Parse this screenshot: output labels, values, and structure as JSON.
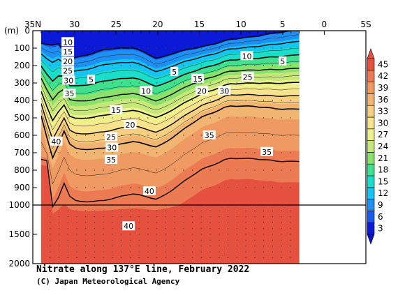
{
  "chart_data": {
    "type": "heatmap",
    "title": "Nitrate along 137°E line, February 2022",
    "credit": "(C) Japan Meteorological Agency",
    "ylabel": "(m)",
    "x_ticks": [
      "35N",
      "30",
      "25",
      "20",
      "15",
      "10",
      "5",
      "0",
      "5S"
    ],
    "x_tick_values": [
      35,
      30,
      25,
      20,
      15,
      10,
      5,
      0,
      -5
    ],
    "xlim": [
      35,
      -5
    ],
    "y_ticks_upper": [
      "0",
      "100",
      "200",
      "300",
      "400",
      "500",
      "600",
      "700",
      "800",
      "900",
      "1000"
    ],
    "y_ticks_lower": [
      "1500",
      "2000"
    ],
    "y_break": 1000,
    "ylim": [
      0,
      2000
    ],
    "data_extent_lat": [
      34,
      3
    ],
    "colorbar": {
      "levels": [
        3,
        6,
        9,
        12,
        15,
        18,
        21,
        24,
        27,
        30,
        33,
        36,
        39,
        42,
        45
      ],
      "labels": [
        "45",
        "42",
        "39",
        "36",
        "33",
        "30",
        "27",
        "24",
        "21",
        "18",
        "15",
        "12",
        "9",
        "6",
        "3"
      ],
      "colors": [
        "#0a1ad6",
        "#1a58f0",
        "#1e8ff5",
        "#16c4f2",
        "#19dfca",
        "#3fe08e",
        "#8be16b",
        "#c6e77a",
        "#eef08c",
        "#f7e38c",
        "#f6cf80",
        "#f2b471",
        "#ef9a62",
        "#ec7a53",
        "#e6503e"
      ]
    },
    "contour_labels": [
      {
        "text": "10",
        "lat": 30.8,
        "depth": 65
      },
      {
        "text": "15",
        "lat": 30.8,
        "depth": 120
      },
      {
        "text": "20",
        "lat": 30.8,
        "depth": 175
      },
      {
        "text": "25",
        "lat": 30.8,
        "depth": 230
      },
      {
        "text": "30",
        "lat": 30.7,
        "depth": 285
      },
      {
        "text": "35",
        "lat": 30.6,
        "depth": 360
      },
      {
        "text": "40",
        "lat": 32.2,
        "depth": 635
      },
      {
        "text": "5",
        "lat": 28.0,
        "depth": 280
      },
      {
        "text": "10",
        "lat": 21.4,
        "depth": 345
      },
      {
        "text": "15",
        "lat": 25.0,
        "depth": 455
      },
      {
        "text": "20",
        "lat": 23.3,
        "depth": 540
      },
      {
        "text": "25",
        "lat": 25.6,
        "depth": 610
      },
      {
        "text": "30",
        "lat": 25.5,
        "depth": 670
      },
      {
        "text": "35",
        "lat": 25.6,
        "depth": 740
      },
      {
        "text": "40",
        "lat": 21.0,
        "depth": 920
      },
      {
        "text": "40",
        "lat": 23.5,
        "depth": 1360
      },
      {
        "text": "5",
        "lat": 18.0,
        "depth": 235
      },
      {
        "text": "15",
        "lat": 15.2,
        "depth": 275
      },
      {
        "text": "20",
        "lat": 14.7,
        "depth": 345
      },
      {
        "text": "30",
        "lat": 12.0,
        "depth": 345
      },
      {
        "text": "35",
        "lat": 13.8,
        "depth": 600
      },
      {
        "text": "10",
        "lat": 9.3,
        "depth": 145
      },
      {
        "text": "25",
        "lat": 9.2,
        "depth": 265
      },
      {
        "text": "5",
        "lat": 5.0,
        "depth": 175
      },
      {
        "text": "35",
        "lat": 6.9,
        "depth": 695
      }
    ]
  }
}
